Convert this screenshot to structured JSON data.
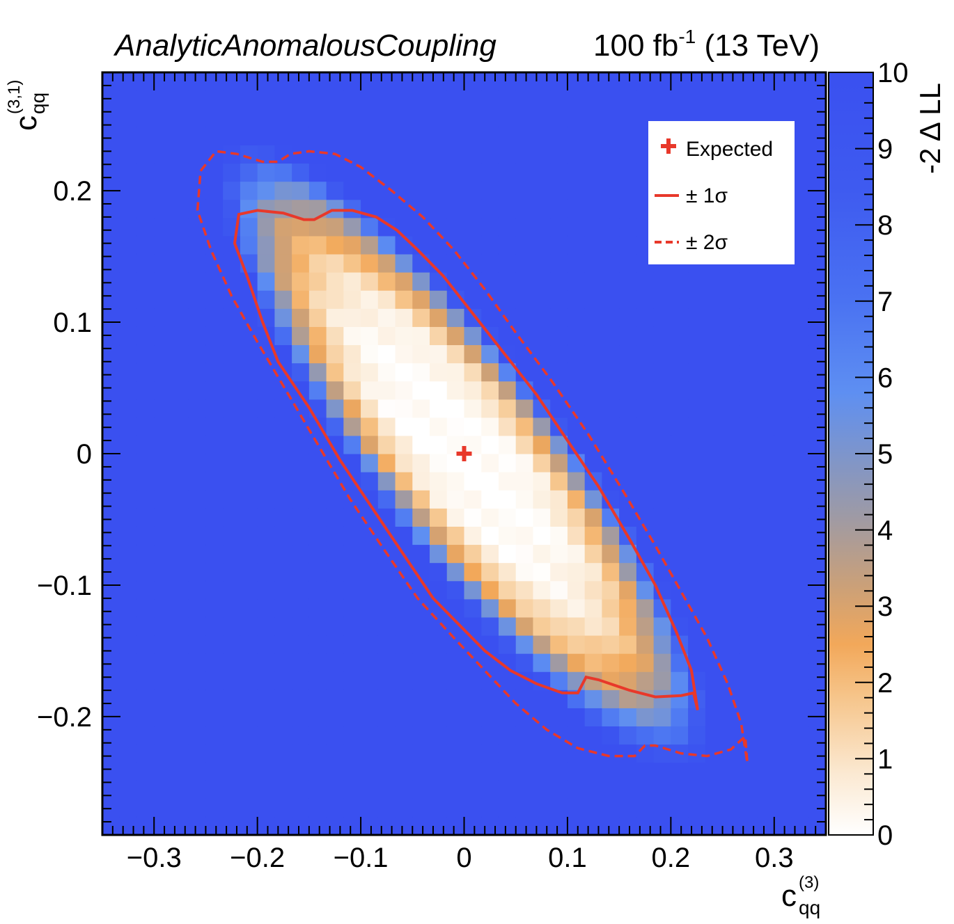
{
  "header": {
    "left_title": "AnalyticAnomalousCoupling",
    "right_title_lumi": "100 fb",
    "right_title_exp": "-1",
    "right_title_energy": " (13 TeV)"
  },
  "x_axis": {
    "label_main": "c",
    "label_sub": "qq",
    "label_sup": "(3)",
    "ticks": [
      "−0.3",
      "−0.2",
      "−0.1",
      "0",
      "0.1",
      "0.2",
      "0.3"
    ]
  },
  "y_axis": {
    "label_main": "c",
    "label_sub": "qq",
    "label_sup": "(3,1)",
    "ticks": [
      "−0.2",
      "−0.1",
      "0",
      "0.1",
      "0.2"
    ]
  },
  "colorbar": {
    "title": "-2 Δ LL",
    "ticks": [
      "0",
      "1",
      "2",
      "3",
      "4",
      "5",
      "6",
      "7",
      "8",
      "9",
      "10"
    ]
  },
  "legend": {
    "expected": "Expected",
    "one_sigma": "± 1σ",
    "two_sigma": "± 2σ"
  },
  "colors": {
    "background_saturated": "#3a50f0",
    "contour": "#e8382a",
    "low": "#ffffff",
    "mid": "#f2a85a",
    "high": "#9a9aa6"
  },
  "chart_data": {
    "type": "heatmap",
    "title": "AnalyticAnomalousCoupling",
    "xlabel": "c_qq^(3)",
    "ylabel": "c_qq^(3,1)",
    "zlabel": "-2 Δ LL",
    "xlim": [
      -0.35,
      0.35
    ],
    "ylim": [
      -0.29,
      0.29
    ],
    "zlim": [
      0,
      10
    ],
    "bins": [
      42,
      42
    ],
    "expected_point": [
      0,
      0
    ],
    "one_sigma_contour": [
      [
        -0.218,
        0.182
      ],
      [
        -0.2,
        0.185
      ],
      [
        -0.175,
        0.183
      ],
      [
        -0.155,
        0.178
      ],
      [
        -0.145,
        0.178
      ],
      [
        -0.128,
        0.185
      ],
      [
        -0.108,
        0.185
      ],
      [
        -0.085,
        0.18
      ],
      [
        -0.065,
        0.17
      ],
      [
        -0.045,
        0.155
      ],
      [
        -0.02,
        0.135
      ],
      [
        0.01,
        0.105
      ],
      [
        0.04,
        0.075
      ],
      [
        0.07,
        0.045
      ],
      [
        0.1,
        0.01
      ],
      [
        0.13,
        -0.025
      ],
      [
        0.16,
        -0.065
      ],
      [
        0.185,
        -0.1
      ],
      [
        0.205,
        -0.135
      ],
      [
        0.22,
        -0.165
      ],
      [
        0.226,
        -0.195
      ],
      [
        0.222,
        -0.182
      ],
      [
        0.21,
        -0.184
      ],
      [
        0.185,
        -0.185
      ],
      [
        0.16,
        -0.18
      ],
      [
        0.13,
        -0.172
      ],
      [
        0.118,
        -0.17
      ],
      [
        0.11,
        -0.182
      ],
      [
        0.095,
        -0.182
      ],
      [
        0.07,
        -0.175
      ],
      [
        0.045,
        -0.165
      ],
      [
        0.02,
        -0.15
      ],
      [
        -0.005,
        -0.13
      ],
      [
        -0.03,
        -0.11
      ],
      [
        -0.06,
        -0.075
      ],
      [
        -0.09,
        -0.04
      ],
      [
        -0.12,
        -0.005
      ],
      [
        -0.15,
        0.035
      ],
      [
        -0.18,
        0.07
      ],
      [
        -0.195,
        0.1
      ],
      [
        -0.21,
        0.135
      ],
      [
        -0.222,
        0.16
      ],
      [
        -0.218,
        0.182
      ]
    ],
    "two_sigma_contour": [
      [
        -0.255,
        0.215
      ],
      [
        -0.24,
        0.23
      ],
      [
        -0.22,
        0.228
      ],
      [
        -0.195,
        0.222
      ],
      [
        -0.18,
        0.222
      ],
      [
        -0.168,
        0.228
      ],
      [
        -0.15,
        0.23
      ],
      [
        -0.125,
        0.228
      ],
      [
        -0.1,
        0.218
      ],
      [
        -0.07,
        0.2
      ],
      [
        -0.04,
        0.18
      ],
      [
        -0.01,
        0.155
      ],
      [
        0.02,
        0.125
      ],
      [
        0.05,
        0.092
      ],
      [
        0.085,
        0.055
      ],
      [
        0.12,
        0.015
      ],
      [
        0.155,
        -0.03
      ],
      [
        0.185,
        -0.07
      ],
      [
        0.21,
        -0.105
      ],
      [
        0.235,
        -0.14
      ],
      [
        0.255,
        -0.175
      ],
      [
        0.268,
        -0.205
      ],
      [
        0.274,
        -0.235
      ],
      [
        0.272,
        -0.215
      ],
      [
        0.258,
        -0.225
      ],
      [
        0.235,
        -0.23
      ],
      [
        0.21,
        -0.228
      ],
      [
        0.185,
        -0.222
      ],
      [
        0.175,
        -0.222
      ],
      [
        0.165,
        -0.23
      ],
      [
        0.14,
        -0.23
      ],
      [
        0.11,
        -0.224
      ],
      [
        0.08,
        -0.21
      ],
      [
        0.05,
        -0.19
      ],
      [
        0.02,
        -0.165
      ],
      [
        -0.01,
        -0.14
      ],
      [
        -0.045,
        -0.11
      ],
      [
        -0.08,
        -0.07
      ],
      [
        -0.11,
        -0.035
      ],
      [
        -0.14,
        0.005
      ],
      [
        -0.17,
        0.045
      ],
      [
        -0.2,
        0.085
      ],
      [
        -0.225,
        0.12
      ],
      [
        -0.245,
        0.155
      ],
      [
        -0.258,
        0.185
      ],
      [
        -0.255,
        0.215
      ]
    ]
  }
}
